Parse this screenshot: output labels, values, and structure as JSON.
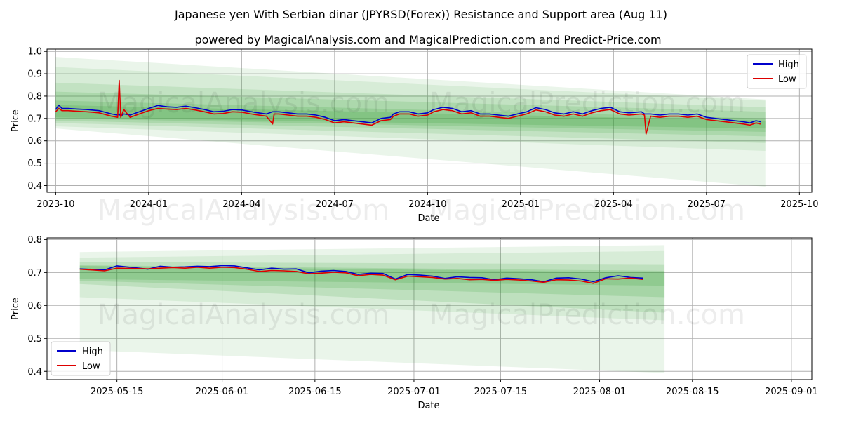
{
  "title": "Japanese yen With Serbian dinar (JPYRSD(Forex)) Resistance and Support area (Aug 11)",
  "subtitle": "powered by MagicalAnalysis.com and MagicalPrediction.com and Predict-Price.com",
  "watermark_left": "MagicalAnalysis.com",
  "watermark_right": "MagicalPrediction.com",
  "colors": {
    "high": "#0000cc",
    "low": "#dd0000",
    "band": "#2e9a2e",
    "grid": "#b0b0b0"
  },
  "chart_data": [
    {
      "type": "line",
      "panel": "top",
      "xlabel": "Date",
      "ylabel": "Price",
      "ylim": [
        0.37,
        1.01
      ],
      "yticks": [
        0.4,
        0.5,
        0.6,
        0.7,
        0.8,
        0.9,
        1.0
      ],
      "ytick_labels": [
        "0.4",
        "0.5",
        "0.6",
        "0.7",
        "0.8",
        "0.9",
        "1.0"
      ],
      "xlim": [
        -0.28,
        24.4
      ],
      "xticks": [
        0,
        3,
        6,
        9,
        12,
        15,
        18,
        21,
        24
      ],
      "xtick_labels": [
        "2023-10",
        "2024-01",
        "2024-04",
        "2024-07",
        "2024-10",
        "2025-01",
        "2025-04",
        "2025-07",
        "2025-10"
      ],
      "legend": {
        "position": "top-right",
        "entries": [
          "High",
          "Low"
        ]
      },
      "series": [
        {
          "name": "High",
          "x": [
            0,
            0.1,
            0.2,
            0.4,
            0.7,
            1.0,
            1.4,
            1.8,
            2.0,
            2.05,
            2.1,
            2.2,
            2.4,
            2.7,
            3.0,
            3.3,
            3.6,
            3.9,
            4.2,
            4.5,
            4.8,
            5.1,
            5.4,
            5.7,
            6.0,
            6.4,
            6.8,
            7.0,
            7.05,
            7.2,
            7.5,
            7.8,
            8.1,
            8.4,
            8.7,
            9.0,
            9.3,
            9.6,
            9.9,
            10.2,
            10.5,
            10.8,
            10.9,
            11.1,
            11.4,
            11.7,
            12.0,
            12.2,
            12.5,
            12.8,
            13.1,
            13.4,
            13.7,
            14.0,
            14.3,
            14.6,
            14.9,
            15.2,
            15.5,
            15.8,
            16.1,
            16.4,
            16.7,
            17.0,
            17.3,
            17.6,
            17.9,
            18.2,
            18.5,
            18.9,
            19.0,
            19.05,
            19.2,
            19.5,
            19.8,
            20.1,
            20.4,
            20.7,
            21.0,
            21.3,
            21.6,
            21.9,
            22.2,
            22.4,
            22.6,
            22.75
          ],
          "values": [
            0.74,
            0.76,
            0.745,
            0.745,
            0.742,
            0.74,
            0.735,
            0.72,
            0.715,
            0.72,
            0.71,
            0.72,
            0.715,
            0.73,
            0.745,
            0.758,
            0.752,
            0.75,
            0.755,
            0.748,
            0.74,
            0.73,
            0.732,
            0.74,
            0.738,
            0.728,
            0.72,
            0.73,
            0.73,
            0.73,
            0.725,
            0.72,
            0.72,
            0.715,
            0.705,
            0.69,
            0.695,
            0.69,
            0.685,
            0.68,
            0.7,
            0.705,
            0.72,
            0.73,
            0.73,
            0.72,
            0.725,
            0.74,
            0.75,
            0.745,
            0.73,
            0.735,
            0.72,
            0.72,
            0.715,
            0.71,
            0.72,
            0.73,
            0.748,
            0.74,
            0.725,
            0.72,
            0.73,
            0.72,
            0.735,
            0.745,
            0.75,
            0.73,
            0.725,
            0.73,
            0.72,
            0.72,
            0.72,
            0.715,
            0.72,
            0.72,
            0.715,
            0.72,
            0.705,
            0.7,
            0.695,
            0.69,
            0.685,
            0.68,
            0.69,
            0.685
          ]
        },
        {
          "name": "Low",
          "x": [
            0,
            0.1,
            0.2,
            0.4,
            0.7,
            1.0,
            1.4,
            1.8,
            2.0,
            2.05,
            2.1,
            2.2,
            2.4,
            2.7,
            3.0,
            3.3,
            3.6,
            3.9,
            4.2,
            4.5,
            4.8,
            5.1,
            5.4,
            5.7,
            6.0,
            6.4,
            6.8,
            7.0,
            7.05,
            7.2,
            7.5,
            7.8,
            8.1,
            8.4,
            8.7,
            9.0,
            9.3,
            9.6,
            9.9,
            10.2,
            10.5,
            10.8,
            10.9,
            11.1,
            11.4,
            11.7,
            12.0,
            12.2,
            12.5,
            12.8,
            13.1,
            13.4,
            13.7,
            14.0,
            14.3,
            14.6,
            14.9,
            15.2,
            15.5,
            15.8,
            16.1,
            16.4,
            16.7,
            17.0,
            17.3,
            17.6,
            17.9,
            18.2,
            18.5,
            18.9,
            19.0,
            19.05,
            19.2,
            19.5,
            19.8,
            20.1,
            20.4,
            20.7,
            21.0,
            21.3,
            21.6,
            21.9,
            22.2,
            22.4,
            22.6,
            22.75
          ],
          "values": [
            0.73,
            0.745,
            0.735,
            0.735,
            0.732,
            0.73,
            0.725,
            0.71,
            0.705,
            0.87,
            0.705,
            0.74,
            0.705,
            0.72,
            0.735,
            0.745,
            0.742,
            0.74,
            0.745,
            0.738,
            0.73,
            0.72,
            0.722,
            0.73,
            0.728,
            0.718,
            0.71,
            0.675,
            0.72,
            0.72,
            0.715,
            0.71,
            0.71,
            0.705,
            0.695,
            0.68,
            0.685,
            0.68,
            0.675,
            0.67,
            0.69,
            0.695,
            0.71,
            0.72,
            0.72,
            0.71,
            0.715,
            0.73,
            0.74,
            0.735,
            0.72,
            0.725,
            0.71,
            0.71,
            0.705,
            0.7,
            0.71,
            0.72,
            0.738,
            0.73,
            0.715,
            0.71,
            0.72,
            0.71,
            0.725,
            0.735,
            0.74,
            0.72,
            0.715,
            0.72,
            0.715,
            0.63,
            0.71,
            0.705,
            0.71,
            0.71,
            0.705,
            0.71,
            0.695,
            0.69,
            0.685,
            0.68,
            0.675,
            0.67,
            0.68,
            0.675
          ]
        }
      ]
    },
    {
      "type": "line",
      "panel": "bottom",
      "xlabel": "Date",
      "ylabel": "Price",
      "ylim": [
        0.375,
        0.805
      ],
      "yticks": [
        0.4,
        0.5,
        0.6,
        0.7,
        0.8
      ],
      "ytick_labels": [
        "0.4",
        "0.5",
        "0.6",
        "0.7",
        "0.8"
      ],
      "xlim": [
        -5.3,
        118.3
      ],
      "xticks": [
        6,
        23,
        38,
        54,
        68,
        84,
        99,
        115
      ],
      "xtick_labels": [
        "2025-05-15",
        "2025-06-01",
        "2025-06-15",
        "2025-07-01",
        "2025-07-15",
        "2025-08-01",
        "2025-08-15",
        "2025-09-01"
      ],
      "legend": {
        "position": "bottom-left",
        "entries": [
          "High",
          "Low"
        ]
      },
      "series": [
        {
          "name": "High",
          "x": [
            0,
            4,
            6,
            9,
            11,
            13,
            15,
            17,
            19,
            21,
            23,
            25,
            27,
            29,
            31,
            33,
            35,
            37,
            39,
            41,
            43,
            45,
            47,
            49,
            51,
            53,
            55,
            57,
            59,
            61,
            63,
            65,
            67,
            69,
            71,
            73,
            75,
            77,
            79,
            81,
            83,
            85,
            87,
            89,
            91
          ],
          "values": [
            0.711,
            0.708,
            0.72,
            0.714,
            0.71,
            0.719,
            0.716,
            0.717,
            0.719,
            0.718,
            0.721,
            0.72,
            0.714,
            0.708,
            0.713,
            0.71,
            0.711,
            0.699,
            0.704,
            0.706,
            0.703,
            0.694,
            0.698,
            0.697,
            0.68,
            0.694,
            0.692,
            0.689,
            0.682,
            0.687,
            0.685,
            0.684,
            0.678,
            0.683,
            0.681,
            0.678,
            0.672,
            0.683,
            0.684,
            0.68,
            0.672,
            0.684,
            0.69,
            0.685,
            0.683
          ]
        },
        {
          "name": "Low",
          "x": [
            0,
            4,
            6,
            9,
            11,
            13,
            15,
            17,
            19,
            21,
            23,
            25,
            27,
            29,
            31,
            33,
            35,
            37,
            39,
            41,
            43,
            45,
            47,
            49,
            51,
            53,
            55,
            57,
            59,
            61,
            63,
            65,
            67,
            69,
            71,
            73,
            75,
            77,
            79,
            81,
            83,
            85,
            87,
            89,
            91
          ],
          "values": [
            0.71,
            0.705,
            0.713,
            0.712,
            0.711,
            0.713,
            0.715,
            0.713,
            0.716,
            0.713,
            0.716,
            0.715,
            0.71,
            0.703,
            0.706,
            0.705,
            0.703,
            0.696,
            0.698,
            0.701,
            0.699,
            0.69,
            0.694,
            0.692,
            0.678,
            0.689,
            0.687,
            0.685,
            0.68,
            0.682,
            0.678,
            0.679,
            0.676,
            0.679,
            0.677,
            0.674,
            0.67,
            0.678,
            0.677,
            0.674,
            0.667,
            0.681,
            0.68,
            0.683,
            0.679
          ]
        }
      ]
    }
  ]
}
